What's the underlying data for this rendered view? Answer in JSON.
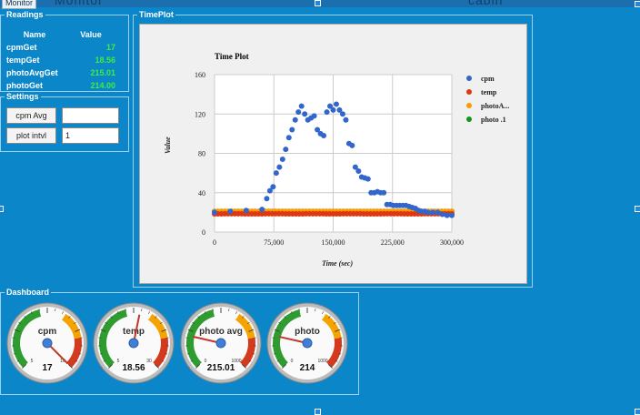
{
  "window": {
    "title": "Monitor",
    "header_left": "Monitor",
    "header_right": "cabin"
  },
  "readings": {
    "legend": "Readings",
    "columns": [
      "Name",
      "Value"
    ],
    "rows": [
      {
        "name": "cpmGet",
        "value": "17"
      },
      {
        "name": "tempGet",
        "value": "18.56"
      },
      {
        "name": "photoAvgGet",
        "value": "215.01"
      },
      {
        "name": "photoGet",
        "value": "214.00"
      }
    ]
  },
  "settings": {
    "legend": "Settings",
    "cpm_avg_label": "cpm Avg",
    "cpm_avg_value": "",
    "plot_intvl_label": "plot intvl",
    "plot_intvl_value": "1"
  },
  "timeplot": {
    "legend": "TimePlot",
    "title": "Time Plot",
    "xlabel": "Time (sec)",
    "ylabel": "Value",
    "x_ticks": [
      "0",
      "75,000",
      "150,000",
      "225,000",
      "300,000"
    ],
    "y_ticks": [
      "0",
      "40",
      "80",
      "120",
      "160"
    ],
    "legend_items": [
      {
        "label": "cpm",
        "color": "#3366cc"
      },
      {
        "label": "temp",
        "color": "#dc3912"
      },
      {
        "label": "photoA...",
        "color": "#ff9900"
      },
      {
        "label": "photo .1",
        "color": "#109618"
      }
    ]
  },
  "chart_data": {
    "type": "scatter",
    "title": "Time Plot",
    "xlabel": "Time (sec)",
    "ylabel": "Value",
    "xlim": [
      0,
      300000
    ],
    "ylim": [
      0,
      160
    ],
    "series": [
      {
        "name": "cpm",
        "color": "#3366cc",
        "x": [
          0,
          20000,
          40000,
          60000,
          66000,
          70000,
          74000,
          78000,
          82000,
          86000,
          90000,
          94000,
          98000,
          102000,
          106000,
          110000,
          114000,
          118000,
          122000,
          126000,
          130000,
          134000,
          138000,
          142000,
          146000,
          150000,
          154000,
          158000,
          162000,
          166000,
          170000,
          174000,
          178000,
          182000,
          186000,
          190000,
          194000,
          198000,
          202000,
          206000,
          210000,
          214000,
          218000,
          222000,
          226000,
          230000,
          234000,
          238000,
          242000,
          246000,
          250000,
          254000,
          258000,
          262000,
          266000,
          270000,
          276000,
          282000,
          288000,
          294000,
          300000
        ],
        "y": [
          20,
          21,
          22,
          23,
          34,
          42,
          46,
          60,
          66,
          74,
          84,
          96,
          104,
          114,
          122,
          128,
          120,
          114,
          116,
          118,
          104,
          100,
          98,
          122,
          128,
          124,
          130,
          124,
          120,
          114,
          90,
          88,
          66,
          62,
          56,
          55,
          54,
          40,
          40,
          41,
          40,
          40,
          28,
          28,
          27,
          27,
          27,
          27,
          27,
          26,
          25,
          24,
          22,
          21,
          21,
          20,
          20,
          20,
          18,
          17,
          17
        ]
      },
      {
        "name": "temp",
        "color": "#dc3912",
        "x": [
          0,
          25000,
          50000,
          75000,
          100000,
          125000,
          150000,
          175000,
          200000,
          225000,
          250000,
          275000,
          300000
        ],
        "y": [
          18.5,
          18.6,
          18.5,
          18.6,
          18.5,
          18.6,
          18.5,
          18.6,
          18.5,
          18.6,
          18.5,
          18.6,
          18.56
        ]
      },
      {
        "name": "photoAvg",
        "color": "#ff9900",
        "x": [
          0,
          25000,
          50000,
          75000,
          100000,
          125000,
          150000,
          175000,
          200000,
          225000,
          250000,
          275000,
          300000
        ],
        "y": [
          21,
          21,
          21,
          21,
          21,
          21,
          21,
          21,
          21,
          21,
          21,
          21,
          21
        ]
      },
      {
        "name": "photo",
        "color": "#109618",
        "x": [
          0,
          25000,
          50000,
          75000,
          100000,
          125000,
          150000,
          175000,
          200000,
          225000,
          250000,
          275000,
          300000
        ],
        "y": [
          21,
          21,
          21,
          21,
          21,
          21,
          21,
          21,
          21,
          21,
          21,
          21,
          21
        ]
      }
    ]
  },
  "dashboard": {
    "legend": "Dashboard",
    "gauges": [
      {
        "label": "cpm",
        "value": "17",
        "num": 17,
        "min": "5",
        "max": "16",
        "min_num": 5,
        "max_num": 16
      },
      {
        "label": "temp",
        "value": "18.56",
        "num": 18.56,
        "min": "5",
        "max": "30",
        "min_num": 5,
        "max_num": 30
      },
      {
        "label": "photo avg",
        "value": "215.01",
        "num": 215.01,
        "min": "0",
        "max": "1000",
        "min_num": 0,
        "max_num": 1000
      },
      {
        "label": "photo",
        "value": "214",
        "num": 214,
        "min": "0",
        "max": "1000",
        "min_num": 0,
        "max_num": 1000
      }
    ]
  }
}
